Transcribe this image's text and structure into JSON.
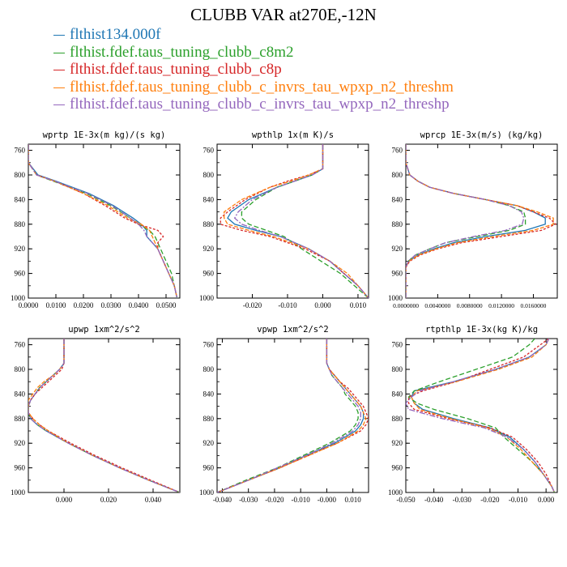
{
  "title": "CLUBB VAR at270E,-12N",
  "legend": [
    {
      "label": "flthist134.000f",
      "color": "#1f77b4"
    },
    {
      "label": "flthist.fdef.taus_tuning_clubb_c8m2",
      "color": "#2ca02c"
    },
    {
      "label": "flthist.fdef.taus_tuning_clubb_c8p",
      "color": "#d62728"
    },
    {
      "label": "flthist.fdef.taus_tuning_clubb_c_invrs_tau_wpxp_n2_threshm",
      "color": "#ff7f0e"
    },
    {
      "label": "flthist.fdef.taus_tuning_clubb_c_invrs_tau_wpxp_n2_threshp",
      "color": "#9467bd"
    }
  ],
  "chart_data": [
    {
      "type": "line",
      "title": "wprtp  1E-3x(m kg)/(s kg)",
      "xlim": [
        0.0,
        0.055
      ],
      "ylim": [
        1000,
        750
      ],
      "xticks": [
        "0.0000",
        "0.0100",
        "0.0200",
        "0.0300",
        "0.0400",
        "0.0500"
      ],
      "xtick_values": [
        0.0,
        0.01,
        0.02,
        0.03,
        0.04,
        0.05
      ],
      "yticks": [
        "760",
        "800",
        "840",
        "880",
        "920",
        "960",
        "1000"
      ],
      "y": [
        750,
        780,
        800,
        810,
        830,
        850,
        870,
        880,
        890,
        900,
        910,
        920,
        940,
        960,
        980,
        1000
      ],
      "series": [
        {
          "values": [
            0.0,
            0.0,
            0.0035,
            0.01,
            0.022,
            0.031,
            0.038,
            0.041,
            0.043,
            0.043,
            0.045,
            0.047,
            0.049,
            0.051,
            0.053,
            0.054
          ]
        },
        {
          "values": [
            0.0,
            0.0,
            0.003,
            0.009,
            0.021,
            0.03,
            0.037,
            0.04,
            0.044,
            0.046,
            0.047,
            0.048,
            0.05,
            0.052,
            0.053,
            0.054
          ]
        },
        {
          "values": [
            0.0,
            0.0,
            0.003,
            0.0095,
            0.02,
            0.028,
            0.035,
            0.04,
            0.047,
            0.049,
            0.047,
            0.047,
            0.049,
            0.051,
            0.053,
            0.054
          ]
        },
        {
          "values": [
            0.0,
            0.0,
            0.003,
            0.0095,
            0.02,
            0.029,
            0.036,
            0.041,
            0.044,
            0.045,
            0.046,
            0.047,
            0.049,
            0.051,
            0.053,
            0.054
          ]
        },
        {
          "values": [
            0.0,
            0.0,
            0.003,
            0.0095,
            0.0215,
            0.0305,
            0.037,
            0.04,
            0.042,
            0.043,
            0.045,
            0.047,
            0.049,
            0.051,
            0.053,
            0.054
          ]
        }
      ]
    },
    {
      "type": "line",
      "title": "wpthlp  1x(m K)/s",
      "xlim": [
        -0.03,
        0.013
      ],
      "ylim": [
        1000,
        750
      ],
      "xticks": [
        "-0.020",
        "-0.010",
        "0.000",
        "0.010"
      ],
      "xtick_values": [
        -0.02,
        -0.01,
        0.0,
        0.01
      ],
      "yticks": [
        "760",
        "800",
        "840",
        "880",
        "920",
        "960",
        "1000"
      ],
      "y": [
        750,
        760,
        790,
        800,
        810,
        820,
        840,
        860,
        870,
        880,
        890,
        900,
        920,
        940,
        960,
        980,
        1000
      ],
      "series": [
        {
          "values": [
            0.0,
            0.0,
            0.0,
            -0.003,
            -0.008,
            -0.013,
            -0.021,
            -0.026,
            -0.027,
            -0.025,
            -0.019,
            -0.012,
            -0.004,
            0.002,
            0.006,
            0.01,
            0.013
          ]
        },
        {
          "values": [
            0.0,
            0.0,
            0.0,
            -0.003,
            -0.008,
            -0.013,
            -0.019,
            -0.023,
            -0.023,
            -0.021,
            -0.016,
            -0.011,
            -0.006,
            -0.0005,
            0.005,
            0.009,
            0.013
          ]
        },
        {
          "values": [
            0.0,
            0.0,
            0.0,
            -0.004,
            -0.01,
            -0.015,
            -0.022,
            -0.027,
            -0.029,
            -0.029,
            -0.023,
            -0.015,
            -0.005,
            0.002,
            0.006,
            0.01,
            0.013
          ]
        },
        {
          "values": [
            0.0,
            0.0,
            0.0,
            -0.004,
            -0.009,
            -0.015,
            -0.023,
            -0.028,
            -0.028,
            -0.027,
            -0.021,
            -0.014,
            -0.004,
            0.002,
            0.007,
            0.01,
            0.013
          ]
        },
        {
          "values": [
            0.0,
            0.0,
            0.0,
            -0.003,
            -0.008,
            -0.013,
            -0.02,
            -0.024,
            -0.025,
            -0.023,
            -0.018,
            -0.012,
            -0.004,
            0.002,
            0.006,
            0.01,
            0.013
          ]
        }
      ]
    },
    {
      "type": "line",
      "title": "wprcp  1E-3x(m/s) (kg/kg)",
      "xlim": [
        0.0,
        0.019
      ],
      "ylim": [
        1000,
        750
      ],
      "xticks": [
        "0.0000000",
        "0.0040000",
        "0.0080000",
        "0.0120000",
        "0.0160000"
      ],
      "xtick_values": [
        0.0,
        0.004,
        0.008,
        0.012,
        0.016
      ],
      "yticks": [
        "760",
        "800",
        "840",
        "880",
        "920",
        "960",
        "1000"
      ],
      "y": [
        750,
        780,
        800,
        810,
        820,
        830,
        840,
        850,
        860,
        870,
        880,
        890,
        900,
        910,
        920,
        930,
        940,
        950,
        960,
        1000
      ],
      "series": [
        {
          "values": [
            0.0,
            0.0,
            0.0005,
            0.0015,
            0.003,
            0.006,
            0.01,
            0.014,
            0.016,
            0.0175,
            0.0175,
            0.015,
            0.01,
            0.006,
            0.0035,
            0.0015,
            0.0004,
            0.0,
            0.0,
            0.0
          ]
        },
        {
          "values": [
            0.0,
            0.0,
            0.0005,
            0.0015,
            0.003,
            0.006,
            0.01,
            0.013,
            0.0148,
            0.015,
            0.015,
            0.013,
            0.009,
            0.005,
            0.003,
            0.0012,
            0.0003,
            0.0,
            0.0,
            0.0
          ]
        },
        {
          "values": [
            0.0,
            0.0,
            0.0005,
            0.0015,
            0.003,
            0.006,
            0.01,
            0.014,
            0.016,
            0.018,
            0.0188,
            0.017,
            0.012,
            0.007,
            0.004,
            0.0018,
            0.0005,
            0.0,
            0.0,
            0.0
          ]
        },
        {
          "values": [
            0.0,
            0.0,
            0.0005,
            0.0015,
            0.003,
            0.006,
            0.01,
            0.014,
            0.0165,
            0.0185,
            0.0185,
            0.016,
            0.011,
            0.0065,
            0.0038,
            0.0016,
            0.0004,
            0.0,
            0.0,
            0.0
          ]
        },
        {
          "values": [
            0.0,
            0.0,
            0.0005,
            0.0015,
            0.003,
            0.006,
            0.01,
            0.013,
            0.0145,
            0.0148,
            0.0146,
            0.0125,
            0.0085,
            0.005,
            0.003,
            0.0012,
            0.0003,
            0.0,
            0.0,
            0.0
          ]
        }
      ]
    },
    {
      "type": "line",
      "title": "upwp  1xm^2/s^2",
      "xlim": [
        -0.016,
        0.052
      ],
      "ylim": [
        1000,
        750
      ],
      "xticks": [
        "0.000",
        "0.020",
        "0.040"
      ],
      "xtick_values": [
        0.0,
        0.02,
        0.04
      ],
      "yticks": [
        "760",
        "800",
        "840",
        "880",
        "920",
        "960",
        "1000"
      ],
      "y": [
        750,
        790,
        800,
        810,
        820,
        830,
        840,
        850,
        860,
        870,
        880,
        890,
        900,
        920,
        940,
        960,
        980,
        1000
      ],
      "series": [
        {
          "values": [
            0.0,
            0.0,
            -0.002,
            -0.005,
            -0.008,
            -0.011,
            -0.013,
            -0.015,
            -0.016,
            -0.016,
            -0.015,
            -0.012,
            -0.008,
            0.002,
            0.013,
            0.025,
            0.038,
            0.052
          ]
        },
        {
          "values": [
            0.0,
            0.0,
            -0.002,
            -0.005,
            -0.008,
            -0.011,
            -0.013,
            -0.015,
            -0.016,
            -0.016,
            -0.015,
            -0.012,
            -0.008,
            0.002,
            0.013,
            0.025,
            0.038,
            0.052
          ]
        },
        {
          "values": [
            0.0,
            0.0,
            -0.001,
            -0.004,
            -0.007,
            -0.01,
            -0.013,
            -0.015,
            -0.016,
            -0.016,
            -0.014,
            -0.011,
            -0.007,
            0.003,
            0.014,
            0.026,
            0.039,
            0.052
          ]
        },
        {
          "values": [
            0.0,
            0.0,
            -0.002,
            -0.005,
            -0.009,
            -0.012,
            -0.014,
            -0.016,
            -0.016,
            -0.016,
            -0.014,
            -0.011,
            -0.007,
            0.002,
            0.013,
            0.025,
            0.038,
            0.052
          ]
        },
        {
          "values": [
            0.0,
            0.0,
            -0.002,
            -0.005,
            -0.008,
            -0.011,
            -0.013,
            -0.015,
            -0.016,
            -0.016,
            -0.015,
            -0.012,
            -0.008,
            0.002,
            0.013,
            0.025,
            0.038,
            0.052
          ]
        }
      ]
    },
    {
      "type": "line",
      "title": "vpwp  1xm^2/s^2",
      "xlim": [
        -0.042,
        0.016
      ],
      "ylim": [
        1000,
        750
      ],
      "xticks": [
        "-0.040",
        "-0.030",
        "-0.020",
        "-0.010",
        "-0.000",
        "0.010"
      ],
      "xtick_values": [
        -0.04,
        -0.03,
        -0.02,
        -0.01,
        0.0,
        0.01
      ],
      "yticks": [
        "760",
        "800",
        "840",
        "880",
        "920",
        "960",
        "1000"
      ],
      "y": [
        750,
        790,
        800,
        810,
        820,
        830,
        840,
        850,
        860,
        870,
        880,
        890,
        900,
        920,
        940,
        960,
        980,
        1000
      ],
      "series": [
        {
          "values": [
            0.0,
            0.0,
            0.001,
            0.003,
            0.005,
            0.007,
            0.009,
            0.011,
            0.013,
            0.014,
            0.014,
            0.013,
            0.011,
            0.003,
            -0.008,
            -0.018,
            -0.03,
            -0.042
          ]
        },
        {
          "values": [
            0.0,
            0.0,
            0.001,
            0.002,
            0.004,
            0.006,
            0.007,
            0.009,
            0.011,
            0.012,
            0.012,
            0.011,
            0.009,
            0.001,
            -0.009,
            -0.019,
            -0.031,
            -0.042
          ]
        },
        {
          "values": [
            0.0,
            0.0,
            0.001,
            0.003,
            0.005,
            0.008,
            0.01,
            0.012,
            0.014,
            0.015,
            0.016,
            0.015,
            0.013,
            0.004,
            -0.007,
            -0.018,
            -0.03,
            -0.042
          ]
        },
        {
          "values": [
            0.0,
            0.0,
            0.001,
            0.003,
            0.005,
            0.007,
            0.009,
            0.011,
            0.013,
            0.014,
            0.015,
            0.014,
            0.012,
            0.004,
            -0.007,
            -0.018,
            -0.03,
            -0.042
          ]
        },
        {
          "values": [
            0.0,
            0.0,
            0.001,
            0.002,
            0.004,
            0.006,
            0.008,
            0.01,
            0.012,
            0.013,
            0.013,
            0.012,
            0.01,
            0.002,
            -0.008,
            -0.019,
            -0.03,
            -0.042
          ]
        }
      ]
    },
    {
      "type": "line",
      "title": "rtpthlp  1E-3x(kg K)/kg",
      "xlim": [
        -0.05,
        0.004
      ],
      "ylim": [
        1000,
        750
      ],
      "xticks": [
        "-0.050",
        "-0.040",
        "-0.030",
        "-0.020",
        "-0.010",
        "0.000"
      ],
      "xtick_values": [
        -0.05,
        -0.04,
        -0.03,
        -0.02,
        -0.01,
        0.0
      ],
      "yticks": [
        "760",
        "800",
        "840",
        "880",
        "920",
        "960",
        "1000"
      ],
      "y": [
        750,
        760,
        780,
        800,
        820,
        835,
        845,
        855,
        865,
        880,
        895,
        910,
        930,
        950,
        970,
        990,
        1000
      ],
      "series": [
        {
          "values": [
            0.001,
            0.0,
            -0.006,
            -0.018,
            -0.033,
            -0.047,
            -0.048,
            -0.047,
            -0.044,
            -0.033,
            -0.02,
            -0.013,
            -0.008,
            -0.004,
            -0.001,
            0.002,
            0.003
          ]
        },
        {
          "values": [
            -0.004,
            -0.006,
            -0.012,
            -0.025,
            -0.038,
            -0.047,
            -0.049,
            -0.046,
            -0.04,
            -0.028,
            -0.018,
            -0.015,
            -0.01,
            -0.005,
            -0.001,
            0.002,
            0.003
          ]
        },
        {
          "values": [
            0.001,
            -0.002,
            -0.008,
            -0.02,
            -0.032,
            -0.044,
            -0.049,
            -0.049,
            -0.047,
            -0.035,
            -0.02,
            -0.012,
            -0.007,
            -0.003,
            0.0,
            0.002,
            0.003
          ]
        },
        {
          "values": [
            0.001,
            0.0,
            -0.005,
            -0.017,
            -0.032,
            -0.046,
            -0.048,
            -0.047,
            -0.045,
            -0.034,
            -0.021,
            -0.014,
            -0.009,
            -0.005,
            -0.001,
            0.002,
            0.003
          ]
        },
        {
          "values": [
            0.001,
            0.0,
            -0.006,
            -0.018,
            -0.033,
            -0.045,
            -0.048,
            -0.05,
            -0.049,
            -0.037,
            -0.022,
            -0.014,
            -0.008,
            -0.004,
            -0.001,
            0.002,
            0.003
          ]
        }
      ]
    }
  ]
}
